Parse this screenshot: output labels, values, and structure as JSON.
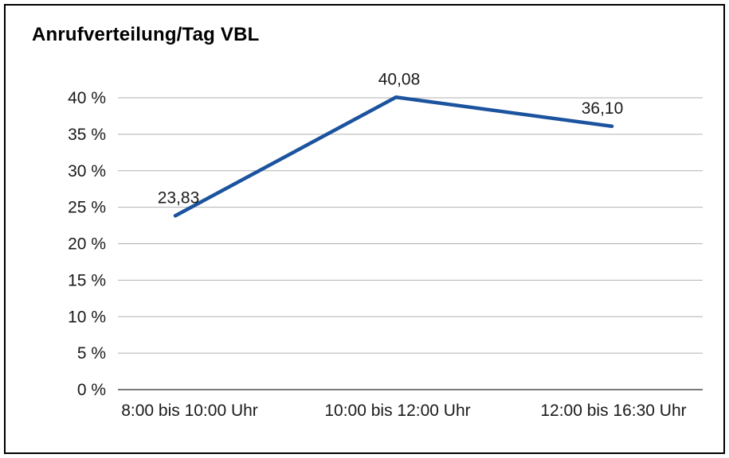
{
  "title": "Anrufverteilung/Tag VBL",
  "chart_data": {
    "type": "line",
    "title": "Anrufverteilung/Tag VBL",
    "categories": [
      "8:00 bis 10:00 Uhr",
      "10:00 bis 12:00 Uhr",
      "12:00 bis 16:30 Uhr"
    ],
    "values": [
      23.83,
      40.08,
      36.1
    ],
    "data_labels": [
      "23,83",
      "40,08",
      "36,10"
    ],
    "xlabel": "",
    "ylabel": "",
    "ylim": [
      0,
      40
    ],
    "ytick_step": 5,
    "ytick_labels": [
      "0 %",
      "5 %",
      "10 %",
      "15 %",
      "20 %",
      "25 %",
      "30 %",
      "35 %",
      "40 %"
    ],
    "grid": true,
    "legend": "none",
    "line_color": "#1b539e",
    "gridline_color": "#b2b2b2",
    "axis_color": "#4d4d4d",
    "text_color": "#1a1a1a"
  }
}
